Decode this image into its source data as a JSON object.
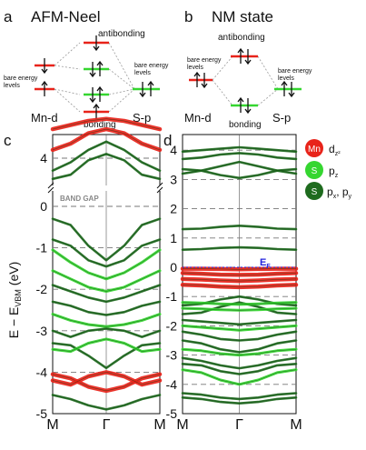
{
  "panels": {
    "a": {
      "letter": "a",
      "title": "AFM-Neel"
    },
    "b": {
      "letter": "b",
      "title": "NM state"
    },
    "c": {
      "letter": "c"
    },
    "d": {
      "letter": "d"
    }
  },
  "energy_diagram": {
    "antibonding": "antibonding",
    "bonding": "bonding",
    "bare_energy": "bare energy",
    "levels": "levels",
    "mn_d": "Mn-d",
    "s_p": "S-p"
  },
  "axis": {
    "ylabel_main": "E − E",
    "ylabel_sub": "VBM",
    "ylabel_unit": " (eV)",
    "xticks": [
      "M",
      "Γ",
      "M"
    ]
  },
  "annotations": {
    "band_gap": "BAND GAP",
    "ef_main": "E",
    "ef_sub": "F"
  },
  "legend": [
    {
      "badge": "Mn",
      "label": "d",
      "sub": "z²",
      "color": "#e8231a"
    },
    {
      "badge": "S",
      "label": "p",
      "sub": "z",
      "color": "#35d630"
    },
    {
      "badge": "S",
      "label": "p",
      "sub": "x",
      "label2": ", p",
      "sub2": "y",
      "color": "#1e6b1e"
    }
  ],
  "colors": {
    "red": "#e8231a",
    "light_green": "#35d630",
    "dark_green": "#1e6b1e",
    "ef_blue": "#2222dd"
  },
  "chart_data": [
    {
      "type": "line",
      "panel": "c",
      "title": "",
      "ylim": [
        -5,
        4.9
      ],
      "yticks": [
        -5,
        -4,
        -3,
        -2,
        -1,
        0,
        4
      ],
      "yaxis_break": [
        0.3,
        3.4
      ],
      "xticks": [
        "M",
        "Γ",
        "M"
      ],
      "series": [
        {
          "color_role": "red",
          "values": [
            4.2,
            4.35,
            4.6,
            4.7,
            4.6,
            4.35,
            4.2
          ]
        },
        {
          "color_role": "red",
          "values": [
            4.7,
            4.8,
            4.9,
            4.95,
            4.9,
            4.8,
            4.7
          ]
        },
        {
          "color_role": "dark_green",
          "values": [
            3.7,
            3.9,
            4.2,
            4.4,
            4.2,
            3.9,
            3.7
          ]
        },
        {
          "color_role": "dark_green",
          "values": [
            3.5,
            3.6,
            3.95,
            4.1,
            3.95,
            3.6,
            3.5
          ]
        },
        {
          "color_role": "dark_green",
          "values": [
            -0.3,
            -0.45,
            -0.95,
            -1.3,
            -0.95,
            -0.45,
            -0.3
          ]
        },
        {
          "color_role": "dark_green",
          "values": [
            -0.8,
            -0.95,
            -1.3,
            -1.45,
            -1.3,
            -0.95,
            -0.8
          ]
        },
        {
          "color_role": "light_green",
          "values": [
            -1.05,
            -1.35,
            -1.6,
            -1.75,
            -1.6,
            -1.35,
            -1.05
          ]
        },
        {
          "color_role": "light_green",
          "values": [
            -1.55,
            -1.75,
            -1.95,
            -2.05,
            -1.95,
            -1.75,
            -1.55
          ]
        },
        {
          "color_role": "dark_green",
          "values": [
            -1.9,
            -2.05,
            -2.2,
            -2.3,
            -2.2,
            -2.05,
            -1.9
          ]
        },
        {
          "color_role": "dark_green",
          "values": [
            -2.3,
            -2.4,
            -2.55,
            -2.62,
            -2.55,
            -2.4,
            -2.3
          ]
        },
        {
          "color_role": "light_green",
          "values": [
            -2.6,
            -2.75,
            -2.85,
            -2.9,
            -2.85,
            -2.75,
            -2.6
          ]
        },
        {
          "color_role": "dark_green",
          "values": [
            -3.0,
            -3.15,
            -3.0,
            -2.95,
            -3.0,
            -3.15,
            -3.0
          ]
        },
        {
          "color_role": "dark_green",
          "values": [
            -3.3,
            -3.35,
            -3.6,
            -3.9,
            -3.6,
            -3.35,
            -3.3
          ]
        },
        {
          "color_role": "light_green",
          "values": [
            -3.45,
            -3.5,
            -3.3,
            -3.2,
            -3.3,
            -3.5,
            -3.45
          ]
        },
        {
          "color_role": "red",
          "values": [
            -4.05,
            -4.15,
            -4.35,
            -4.45,
            -4.35,
            -4.15,
            -4.05
          ]
        },
        {
          "color_role": "red",
          "values": [
            -4.2,
            -4.3,
            -4.1,
            -4.0,
            -4.1,
            -4.3,
            -4.2
          ]
        },
        {
          "color_role": "dark_green",
          "values": [
            -4.55,
            -4.65,
            -4.8,
            -4.9,
            -4.8,
            -4.65,
            -4.55
          ]
        }
      ]
    },
    {
      "type": "line",
      "panel": "d",
      "title": "",
      "ylim": [
        -5,
        4.3
      ],
      "yticks": [
        -5,
        -4,
        -3,
        -2,
        -1,
        0,
        1,
        2,
        3,
        4
      ],
      "xticks": [
        "M",
        "Γ",
        "M"
      ],
      "series": [
        {
          "color_role": "dark_green",
          "values": [
            3.95,
            4.0,
            4.05,
            4.1,
            4.05,
            4.0,
            3.95
          ]
        },
        {
          "color_role": "dark_green",
          "values": [
            3.7,
            3.75,
            3.85,
            3.9,
            3.85,
            3.75,
            3.7
          ]
        },
        {
          "color_role": "dark_green",
          "values": [
            3.2,
            3.3,
            3.45,
            3.6,
            3.45,
            3.3,
            3.2
          ]
        },
        {
          "color_role": "dark_green",
          "values": [
            3.35,
            3.3,
            3.15,
            3.05,
            3.15,
            3.3,
            3.35
          ]
        },
        {
          "color_role": "dark_green",
          "values": [
            1.3,
            1.32,
            1.38,
            1.42,
            1.38,
            1.32,
            1.3
          ]
        },
        {
          "color_role": "dark_green",
          "values": [
            0.6,
            0.62,
            0.66,
            0.68,
            0.66,
            0.62,
            0.6
          ]
        },
        {
          "color_role": "red",
          "values": [
            -0.05,
            -0.05,
            -0.06,
            -0.07,
            -0.06,
            -0.05,
            -0.05
          ]
        },
        {
          "color_role": "red",
          "values": [
            -0.2,
            -0.22,
            -0.25,
            -0.26,
            -0.25,
            -0.22,
            -0.2
          ]
        },
        {
          "color_role": "red",
          "values": [
            -0.4,
            -0.42,
            -0.45,
            -0.47,
            -0.45,
            -0.42,
            -0.4
          ]
        },
        {
          "color_role": "red",
          "values": [
            -0.6,
            -0.62,
            -0.66,
            -0.68,
            -0.66,
            -0.62,
            -0.6
          ]
        },
        {
          "color_role": "dark_green",
          "values": [
            -1.3,
            -1.25,
            -1.1,
            -1.0,
            -1.1,
            -1.25,
            -1.3
          ]
        },
        {
          "color_role": "dark_green",
          "values": [
            -1.6,
            -1.55,
            -1.35,
            -1.2,
            -1.35,
            -1.55,
            -1.6
          ]
        },
        {
          "color_role": "light_green",
          "values": [
            -1.2,
            -1.22,
            -1.25,
            -1.27,
            -1.25,
            -1.22,
            -1.2
          ]
        },
        {
          "color_role": "light_green",
          "values": [
            -1.4,
            -1.42,
            -1.45,
            -1.47,
            -1.45,
            -1.42,
            -1.4
          ]
        },
        {
          "color_role": "dark_green",
          "values": [
            -1.8,
            -1.85,
            -1.9,
            -1.95,
            -1.9,
            -1.85,
            -1.8
          ]
        },
        {
          "color_role": "light_green",
          "values": [
            -2.0,
            -2.05,
            -2.1,
            -2.15,
            -2.1,
            -2.05,
            -2.0
          ]
        },
        {
          "color_role": "dark_green",
          "values": [
            -2.2,
            -2.3,
            -2.45,
            -2.5,
            -2.45,
            -2.3,
            -2.2
          ]
        },
        {
          "color_role": "dark_green",
          "values": [
            -2.5,
            -2.6,
            -2.8,
            -2.9,
            -2.8,
            -2.6,
            -2.5
          ]
        },
        {
          "color_role": "light_green",
          "values": [
            -2.8,
            -2.85,
            -2.95,
            -3.0,
            -2.95,
            -2.85,
            -2.8
          ]
        },
        {
          "color_role": "dark_green",
          "values": [
            -3.1,
            -3.2,
            -3.35,
            -3.45,
            -3.35,
            -3.2,
            -3.1
          ]
        },
        {
          "color_role": "dark_green",
          "values": [
            -3.3,
            -3.35,
            -3.55,
            -3.65,
            -3.55,
            -3.35,
            -3.3
          ]
        },
        {
          "color_role": "light_green",
          "values": [
            -3.5,
            -3.6,
            -3.85,
            -4.0,
            -3.85,
            -3.6,
            -3.5
          ]
        },
        {
          "color_role": "dark_green",
          "values": [
            -4.3,
            -4.35,
            -4.45,
            -4.5,
            -4.45,
            -4.35,
            -4.3
          ]
        },
        {
          "color_role": "dark_green",
          "values": [
            -4.45,
            -4.5,
            -4.6,
            -4.65,
            -4.6,
            -4.5,
            -4.45
          ]
        }
      ]
    }
  ]
}
